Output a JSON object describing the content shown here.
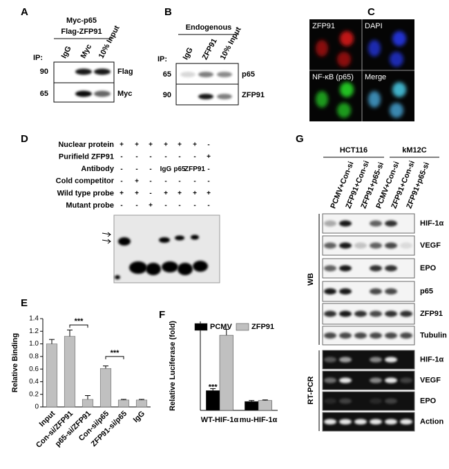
{
  "panels": {
    "A": {
      "label": "A",
      "header": [
        "Myc-p65",
        "Flag-ZFP91"
      ],
      "ip": "IP:",
      "lanes": [
        "IgG",
        "Myc",
        "10% Input"
      ],
      "mw": [
        "90",
        "65"
      ],
      "blots": [
        "Flag",
        "Myc"
      ]
    },
    "B": {
      "label": "B",
      "header": [
        "Endogenous"
      ],
      "ip": "IP:",
      "lanes": [
        "IgG",
        "ZFP91",
        "10% Input"
      ],
      "mw": [
        "65",
        "90"
      ],
      "blots": [
        "p65",
        "ZFP91"
      ]
    },
    "C": {
      "label": "C",
      "channels": [
        "ZFP91",
        "DAPI",
        "NF-κB (p65)",
        "Merge"
      ]
    },
    "D": {
      "label": "D",
      "rows": [
        {
          "name": "Nuclear protein",
          "cells": [
            "+",
            "+",
            "+",
            "+",
            "+",
            "+",
            "-"
          ]
        },
        {
          "name": "Purifield ZFP91",
          "cells": [
            "-",
            "-",
            "-",
            "-",
            "-",
            "-",
            "+"
          ]
        },
        {
          "name": "Antibody",
          "cells": [
            "-",
            "-",
            "-",
            "IgG",
            "p65",
            "ZFP91",
            "-"
          ]
        },
        {
          "name": "Cold competitor",
          "cells": [
            "-",
            "+",
            "-",
            "-",
            "-",
            "-",
            "-"
          ]
        },
        {
          "name": "Wild type probe",
          "cells": [
            "+",
            "+",
            "-",
            "+",
            "+",
            "+",
            "+"
          ]
        },
        {
          "name": "Mutant probe",
          "cells": [
            "-",
            "-",
            "+",
            "-",
            "-",
            "-",
            "-"
          ]
        }
      ]
    },
    "G": {
      "label": "G",
      "groups": [
        "HCT116",
        "kM12C"
      ],
      "lanes": [
        "PCMV+Con-si",
        "ZFP91+Con-si",
        "ZFP91+p65-si",
        "PCMV+Con-si",
        "ZFP91+Con-si",
        "ZFP91+p65-si"
      ],
      "wb_label": "WB",
      "wb": [
        "HIF-1α",
        "VEGF",
        "EPO",
        "p65",
        "ZFP91",
        "Tubulin"
      ],
      "rt_label": "RT-PCR",
      "rt": [
        "HIF-1α",
        "VEGF",
        "EPO",
        "Action"
      ]
    }
  },
  "chart_data": [
    {
      "type": "bar",
      "panel": "E",
      "y_label": "Relative Binding",
      "categories": [
        "Input",
        "Con-si/ZFP91",
        "p65-si/ZFP91",
        "Con-si/p65",
        "ZFP91-si/p65",
        "IgG"
      ],
      "values": [
        1.0,
        1.12,
        0.12,
        0.61,
        0.11,
        0.11
      ],
      "errors": [
        0.07,
        0.1,
        0.06,
        0.04,
        0.01,
        0.01
      ],
      "color": "#c0c0c0",
      "ylim": [
        0,
        1.4
      ],
      "yticks": [
        0,
        0.2,
        0.4,
        0.6,
        0.8,
        {
          "value": 1.0,
          "label": "1.0"
        },
        1.2,
        1.4
      ],
      "annotations": [
        "***",
        "***"
      ]
    },
    {
      "type": "grouped_bar",
      "panel": "F",
      "y_label": "Relative Luciferase (fold)",
      "categories": [
        "WT-HIF-1α",
        "mu-HIF-1α"
      ],
      "series": [
        {
          "name": "PCMV",
          "color": "#000000",
          "values": [
            1.0,
            0.45
          ],
          "errors": [
            0.1,
            0.05
          ]
        },
        {
          "name": "ZFP91",
          "color": "#c0c0c0",
          "values": [
            3.8,
            0.5
          ],
          "errors": [
            0.3,
            0.03
          ]
        }
      ],
      "ylim": [
        0,
        4.5
      ],
      "legend": "top-left",
      "annotations": [
        "***"
      ]
    }
  ]
}
